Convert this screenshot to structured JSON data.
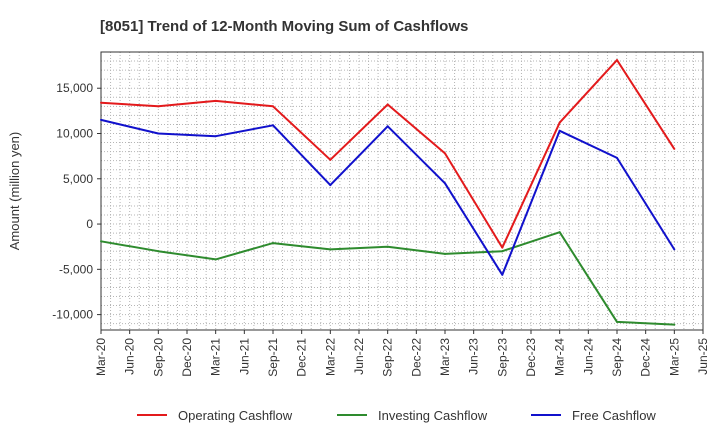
{
  "chart_data": {
    "type": "line",
    "title": "[8051]  Trend of 12-Month Moving Sum of Cashflows",
    "xlabel": "",
    "ylabel": "Amount (million yen)",
    "ylim": [
      -11700,
      19000
    ],
    "y_ticks": [
      -10000,
      -5000,
      0,
      5000,
      10000,
      15000
    ],
    "y_tick_labels": [
      "-10,000",
      "-5,000",
      "0",
      "5,000",
      "10,000",
      "15,000"
    ],
    "categories": [
      "Mar-20",
      "Jun-20",
      "Sep-20",
      "Dec-20",
      "Mar-21",
      "Jun-21",
      "Sep-21",
      "Dec-21",
      "Mar-22",
      "Jun-22",
      "Sep-22",
      "Dec-22",
      "Mar-23",
      "Jun-23",
      "Sep-23",
      "Dec-23",
      "Mar-24",
      "Jun-24",
      "Sep-24",
      "Dec-24",
      "Mar-25",
      "Jun-25"
    ],
    "grid": true,
    "legend_position": "bottom",
    "series": [
      {
        "name": "Operating Cashflow",
        "color": "#e31a1c",
        "values": [
          13400,
          null,
          13000,
          null,
          13600,
          null,
          13000,
          null,
          7100,
          null,
          13200,
          null,
          7800,
          null,
          -2600,
          null,
          11200,
          null,
          18100,
          null,
          8300,
          null
        ]
      },
      {
        "name": "Investing Cashflow",
        "color": "#2e8b2e",
        "values": [
          -1900,
          null,
          -3000,
          null,
          -3900,
          null,
          -2100,
          null,
          -2800,
          null,
          -2500,
          null,
          -3300,
          null,
          -3000,
          null,
          -900,
          null,
          -10800,
          null,
          -11100,
          null
        ]
      },
      {
        "name": "Free Cashflow",
        "color": "#1111cc",
        "values": [
          11500,
          null,
          10000,
          null,
          9700,
          null,
          10900,
          null,
          4300,
          null,
          10800,
          null,
          4500,
          null,
          -5600,
          null,
          10300,
          null,
          7300,
          null,
          -2800,
          null
        ]
      }
    ]
  }
}
